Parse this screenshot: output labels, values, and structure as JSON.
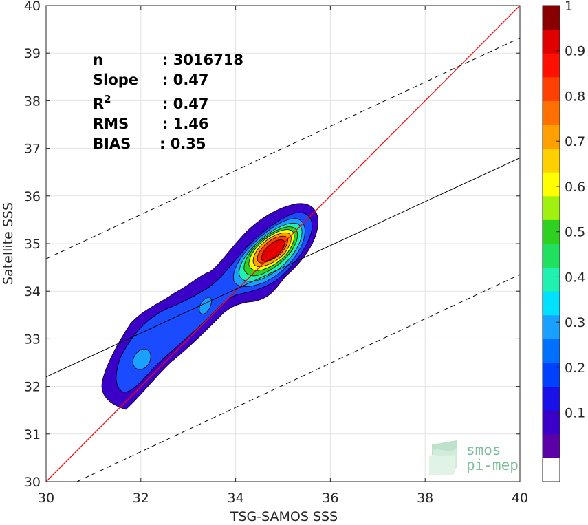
{
  "chart_data": {
    "type": "heatmap",
    "xlabel": "TSG-SAMOS SSS",
    "ylabel": "Satellite SSS",
    "xlim": [
      30,
      40
    ],
    "ylim": [
      30,
      40
    ],
    "xticks": [
      "30",
      "32",
      "34",
      "36",
      "38",
      "40"
    ],
    "yticks": [
      "30",
      "31",
      "32",
      "33",
      "34",
      "35",
      "36",
      "37",
      "38",
      "39",
      "40"
    ],
    "grid": true,
    "stats": {
      "n_label": "n",
      "n_value": ": 3016718",
      "slope_label": "Slope",
      "slope_value": ": 0.47",
      "r2_label": "R",
      "r2_sup": "2",
      "r2_value": ": 0.47",
      "rms_label": "RMS",
      "rms_value": ": 1.46",
      "bias_label": "BIAS",
      "bias_value": ": 0.35"
    },
    "lines": {
      "identity": {
        "x": [
          30,
          40
        ],
        "y": [
          30,
          40
        ],
        "color": "#ff0000"
      },
      "regression": {
        "x": [
          30,
          40
        ],
        "y": [
          32.2,
          36.8
        ],
        "color": "#000000"
      },
      "upper_bound": {
        "x": [
          30,
          40
        ],
        "y": [
          34.68,
          39.32
        ],
        "style": "dashed"
      },
      "lower_bound": {
        "x": [
          30.65,
          40
        ],
        "y": [
          30.0,
          34.35
        ],
        "style": "dashed"
      }
    },
    "density_centers": [
      {
        "x": 34.85,
        "y": 34.85,
        "level": 0.95
      },
      {
        "x": 32.05,
        "y": 32.6,
        "level": 0.3
      },
      {
        "x": 33.35,
        "y": 33.7,
        "level": 0.3
      }
    ],
    "colorbar": {
      "ticks": [
        "0.1",
        "0.2",
        "0.3",
        "0.4",
        "0.5",
        "0.6",
        "0.7",
        "0.8",
        "0.9",
        "1"
      ],
      "colors": [
        "#ffffff",
        "#5c00a8",
        "#3a00c8",
        "#1a10e8",
        "#0040ff",
        "#0070ff",
        "#1aa0ff",
        "#00e0ff",
        "#20f0b0",
        "#20e060",
        "#30d020",
        "#a0f010",
        "#ffff00",
        "#ffd000",
        "#ffa000",
        "#ff7000",
        "#ff4000",
        "#ff1000",
        "#e00000",
        "#8a0000"
      ]
    }
  },
  "logo": {
    "line1": "smos",
    "line2": "pi-mep"
  }
}
